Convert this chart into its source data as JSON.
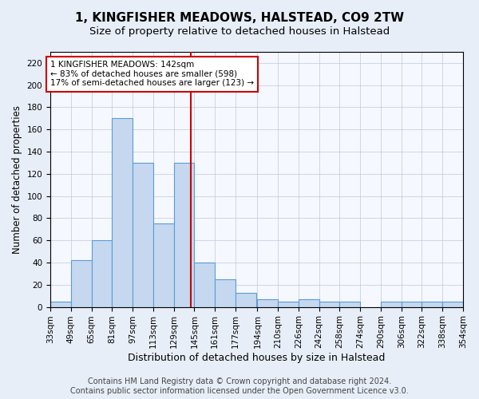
{
  "title": "1, KINGFISHER MEADOWS, HALSTEAD, CO9 2TW",
  "subtitle": "Size of property relative to detached houses in Halstead",
  "xlabel": "Distribution of detached houses by size in Halstead",
  "ylabel": "Number of detached properties",
  "bin_edges": [
    33,
    49,
    65,
    81,
    97,
    113,
    129,
    145,
    161,
    177,
    194,
    210,
    226,
    242,
    258,
    274,
    290,
    306,
    322,
    338,
    354
  ],
  "bar_heights": [
    5,
    42,
    60,
    170,
    130,
    75,
    130,
    40,
    25,
    13,
    7,
    5,
    7,
    5,
    5,
    0,
    5,
    5,
    5,
    5
  ],
  "bar_color": "#c5d8f0",
  "bar_edge_color": "#5b9bd5",
  "property_size": 142,
  "red_line_color": "#cc0000",
  "annotation_text": "1 KINGFISHER MEADOWS: 142sqm\n← 83% of detached houses are smaller (598)\n17% of semi-detached houses are larger (123) →",
  "annotation_box_color": "white",
  "annotation_box_edge_color": "#cc0000",
  "ylim": [
    0,
    230
  ],
  "yticks": [
    0,
    20,
    40,
    60,
    80,
    100,
    120,
    140,
    160,
    180,
    200,
    220
  ],
  "footer_text": "Contains HM Land Registry data © Crown copyright and database right 2024.\nContains public sector information licensed under the Open Government Licence v3.0.",
  "background_color": "#e8eef8",
  "plot_background": "#f5f8ff",
  "title_fontsize": 11,
  "subtitle_fontsize": 9.5,
  "xlabel_fontsize": 9,
  "ylabel_fontsize": 8.5,
  "tick_fontsize": 7.5,
  "footer_fontsize": 7
}
